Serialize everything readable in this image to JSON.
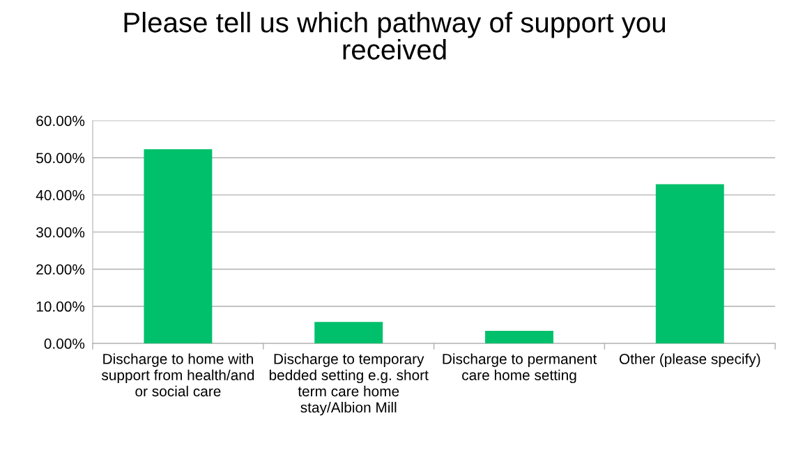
{
  "chart_data": {
    "type": "bar",
    "title": "Please tell us which pathway of support you received",
    "categories": [
      "Discharge to home with support from health/and or social care",
      "Discharge to temporary bedded setting e.g. short term care home stay/Albion Mill",
      "Discharge to permanent care home setting",
      "Other (please specify)"
    ],
    "values": [
      52.3,
      5.8,
      3.4,
      42.9
    ],
    "color": "#00c06b",
    "ylim": [
      0,
      60
    ],
    "yticks": [
      {
        "value": 0,
        "label": "0.00%"
      },
      {
        "value": 10,
        "label": "10.00%"
      },
      {
        "value": 20,
        "label": "20.00%"
      },
      {
        "value": 30,
        "label": "30.00%"
      },
      {
        "value": 40,
        "label": "40.00%"
      },
      {
        "value": 50,
        "label": "50.00%"
      },
      {
        "value": 60,
        "label": "60.00%"
      }
    ],
    "grid": "y"
  }
}
